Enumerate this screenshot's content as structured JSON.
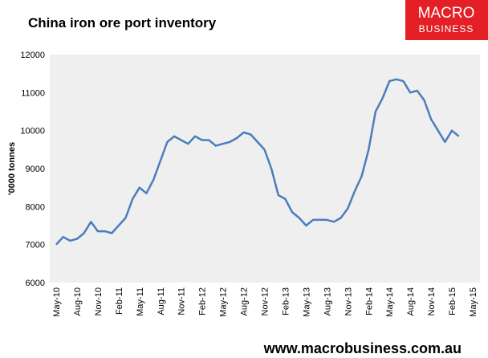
{
  "chart_data": {
    "type": "line",
    "title": "China iron ore port inventory",
    "y_label": "'0000 tonnes",
    "x": [
      "May-10",
      "Jun-10",
      "Jul-10",
      "Aug-10",
      "Sep-10",
      "Oct-10",
      "Nov-10",
      "Dec-10",
      "Jan-11",
      "Feb-11",
      "Mar-11",
      "Apr-11",
      "May-11",
      "Jun-11",
      "Jul-11",
      "Aug-11",
      "Sep-11",
      "Oct-11",
      "Nov-11",
      "Dec-11",
      "Jan-12",
      "Feb-12",
      "Mar-12",
      "Apr-12",
      "May-12",
      "Jun-12",
      "Jul-12",
      "Aug-12",
      "Sep-12",
      "Oct-12",
      "Nov-12",
      "Dec-12",
      "Jan-13",
      "Feb-13",
      "Mar-13",
      "Apr-13",
      "May-13",
      "Jun-13",
      "Jul-13",
      "Aug-13",
      "Sep-13",
      "Oct-13",
      "Nov-13",
      "Dec-13",
      "Jan-14",
      "Feb-14",
      "Mar-14",
      "Apr-14",
      "May-14",
      "Jun-14",
      "Jul-14",
      "Aug-14",
      "Sep-14",
      "Oct-14",
      "Nov-14",
      "Dec-14",
      "Jan-15",
      "Feb-15",
      "Mar-15",
      "Apr-15",
      "May-15"
    ],
    "series": [
      {
        "color": "#4a7ebb",
        "values": [
          7000,
          7200,
          7100,
          7150,
          7300,
          7600,
          7350,
          7350,
          7300,
          7500,
          7700,
          8200,
          8500,
          8350,
          8700,
          9200,
          9700,
          9850,
          9750,
          9650,
          9850,
          9750,
          9750,
          9600,
          9650,
          9700,
          9800,
          9950,
          9900,
          9700,
          9500,
          9000,
          8300,
          8200,
          7850,
          7700,
          7500,
          7650,
          7650,
          7650,
          7600,
          7700,
          7950,
          8400,
          8800,
          9500,
          10500,
          10850,
          11300,
          11350,
          11300,
          11000,
          11050,
          10800,
          10300,
          10000,
          9700,
          10000,
          9850,
          null,
          null
        ]
      }
    ],
    "xticks": [
      "May-10",
      "Aug-10",
      "Nov-10",
      "Feb-11",
      "May-11",
      "Aug-11",
      "Nov-11",
      "Feb-12",
      "May-12",
      "Aug-12",
      "Nov-12",
      "Feb-13",
      "May-13",
      "Aug-13",
      "Nov-13",
      "Feb-14",
      "May-14",
      "Aug-14",
      "Nov-14",
      "Feb-15",
      "May-15"
    ],
    "ylim": [
      6000,
      12000
    ],
    "yticks": [
      6000,
      7000,
      8000,
      9000,
      10000,
      11000,
      12000
    ],
    "grid": false,
    "plot_background": "#efefef"
  },
  "logo": {
    "line1": "MACRO",
    "line2": "BUSINESS"
  },
  "footer": "www.macrobusiness.com.au"
}
